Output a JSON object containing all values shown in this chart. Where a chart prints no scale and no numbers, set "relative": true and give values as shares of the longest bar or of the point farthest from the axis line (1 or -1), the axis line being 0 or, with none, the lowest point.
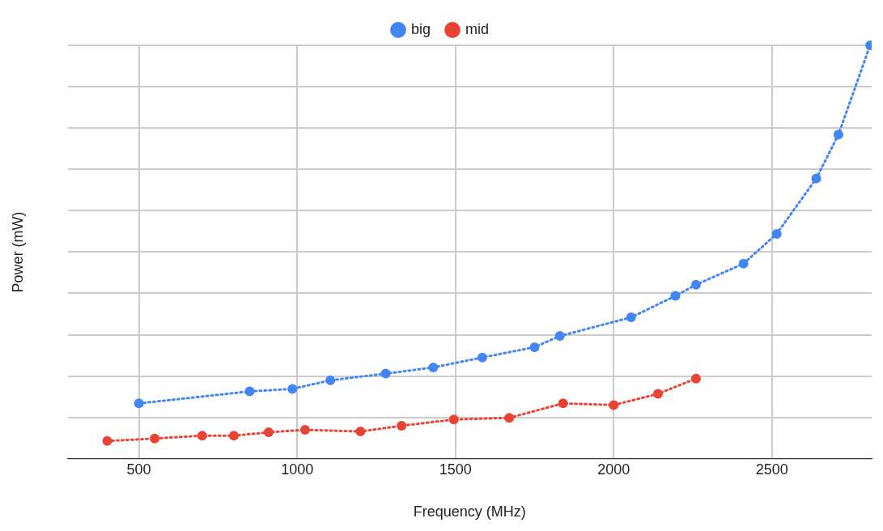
{
  "chart_data": {
    "type": "line",
    "xlabel": "Frequency (MHz)",
    "ylabel": "Power (mW)",
    "relative": true,
    "xlim": [
      275,
      2815
    ],
    "xticks": [
      500,
      1000,
      1500,
      2000,
      2500
    ],
    "grid": true,
    "legend": "top",
    "marker": "circle",
    "line_style": "dotted",
    "series": [
      {
        "name": "big",
        "color": "#4285f4",
        "x": [
          500,
          850,
          985,
          1105,
          1280,
          1430,
          1585,
          1750,
          1830,
          2055,
          2195,
          2260,
          2410,
          2515,
          2640,
          2710,
          2810
        ],
        "values": [
          0.134,
          0.163,
          0.169,
          0.19,
          0.206,
          0.221,
          0.245,
          0.27,
          0.297,
          0.342,
          0.394,
          0.421,
          0.472,
          0.544,
          0.678,
          0.784,
          1
        ]
      },
      {
        "name": "mid",
        "color": "#ea4335",
        "x": [
          400,
          550,
          700,
          800,
          910,
          1025,
          1200,
          1330,
          1495,
          1670,
          1840,
          2000,
          2140,
          2260
        ],
        "values": [
          0.043,
          0.049,
          0.056,
          0.056,
          0.064,
          0.07,
          0.066,
          0.08,
          0.095,
          0.099,
          0.134,
          0.13,
          0.157,
          0.194
        ]
      }
    ]
  }
}
